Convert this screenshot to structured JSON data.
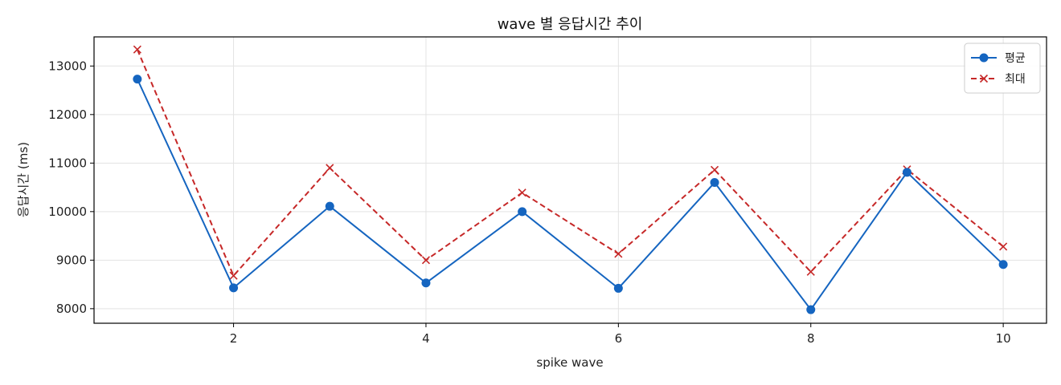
{
  "chart_data": {
    "type": "line",
    "title": "wave 별 응답시간 추이",
    "xlabel": "spike wave",
    "ylabel": "응답시간 (ms)",
    "x": [
      1,
      2,
      3,
      4,
      5,
      6,
      7,
      8,
      9,
      10
    ],
    "xlim": [
      0.55,
      10.45
    ],
    "ylim": [
      7700,
      13600
    ],
    "xticks": [
      2,
      4,
      6,
      8,
      10
    ],
    "yticks": [
      8000,
      9000,
      10000,
      11000,
      12000,
      13000
    ],
    "grid": true,
    "legend_position": "top-right",
    "series": [
      {
        "name": "평균",
        "color": "#1565c0",
        "marker": "circle",
        "line_style": "solid",
        "values": [
          12730,
          8430,
          10110,
          8530,
          10000,
          8420,
          10600,
          7980,
          10810,
          8910
        ]
      },
      {
        "name": "최대",
        "color": "#c62828",
        "marker": "x",
        "line_style": "dashed",
        "values": [
          13340,
          8680,
          10900,
          9000,
          10390,
          9130,
          10860,
          8760,
          10870,
          9280
        ]
      }
    ]
  }
}
